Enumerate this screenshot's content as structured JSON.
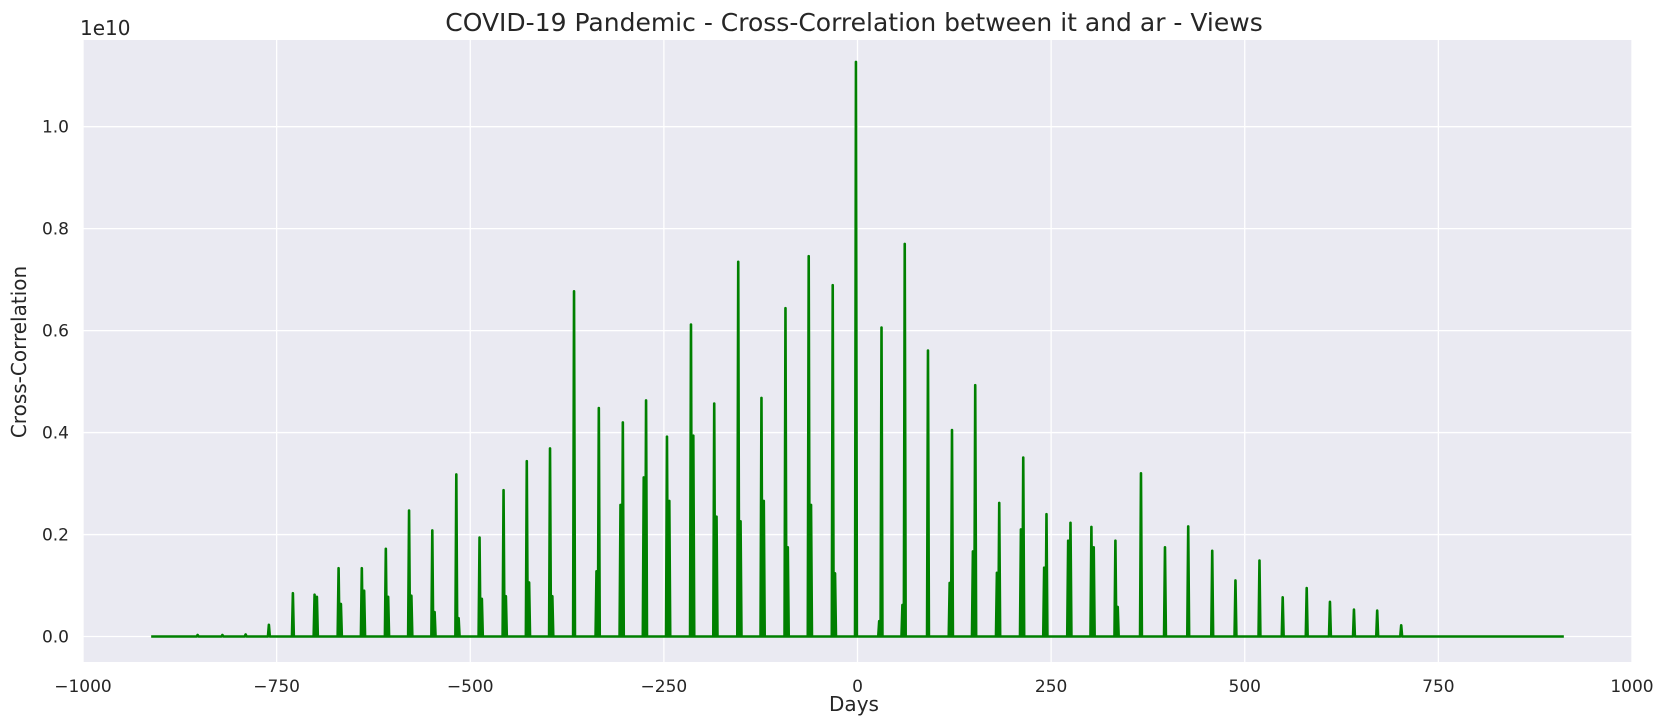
{
  "chart_data": {
    "type": "line",
    "title": "COVID-19 Pandemic - Cross-Correlation between it and ar - Views",
    "xlabel": "Days",
    "ylabel": "Cross-Correlation",
    "y_offset_label": "1e10",
    "xlim": [
      -1000,
      1000
    ],
    "ylim": [
      -0.05,
      1.17
    ],
    "x_range": [
      -912,
      912
    ],
    "x_ticks": [
      -1000,
      -750,
      -500,
      -250,
      0,
      250,
      500,
      750,
      1000
    ],
    "x_tick_labels": [
      "−1000",
      "−750",
      "−500",
      "−250",
      "0",
      "250",
      "500",
      "750",
      "1000"
    ],
    "y_ticks": [
      0.0,
      0.2,
      0.4,
      0.6,
      0.8,
      1.0
    ],
    "y_tick_labels": [
      "0.0",
      "0.2",
      "0.4",
      "0.6",
      "0.8",
      "1.0"
    ],
    "grid": true,
    "line_color": "#008000",
    "background_color": "#eaeaf2",
    "series": [
      {
        "peaks": [
          {
            "x": -852,
            "y": 0.003
          },
          {
            "x": -820,
            "y": 0.003
          },
          {
            "x": -790,
            "y": 0.004
          },
          {
            "x": -760,
            "y": 0.023
          },
          {
            "x": -729,
            "y": 0.085
          },
          {
            "x": -701,
            "y": 0.082
          },
          {
            "x": -698,
            "y": 0.078
          },
          {
            "x": -670,
            "y": 0.134
          },
          {
            "x": -667,
            "y": 0.064
          },
          {
            "x": -640,
            "y": 0.134
          },
          {
            "x": -637,
            "y": 0.09
          },
          {
            "x": -609,
            "y": 0.172
          },
          {
            "x": -606,
            "y": 0.078
          },
          {
            "x": -579,
            "y": 0.247
          },
          {
            "x": -576,
            "y": 0.08
          },
          {
            "x": -549,
            "y": 0.208
          },
          {
            "x": -546,
            "y": 0.048
          },
          {
            "x": -518,
            "y": 0.318
          },
          {
            "x": -515,
            "y": 0.036
          },
          {
            "x": -488,
            "y": 0.194
          },
          {
            "x": -485,
            "y": 0.074
          },
          {
            "x": -457,
            "y": 0.287
          },
          {
            "x": -454,
            "y": 0.079
          },
          {
            "x": -427,
            "y": 0.344
          },
          {
            "x": -424,
            "y": 0.106
          },
          {
            "x": -397,
            "y": 0.369
          },
          {
            "x": -394,
            "y": 0.079
          },
          {
            "x": -366,
            "y": 0.677
          },
          {
            "x": -337,
            "y": 0.128
          },
          {
            "x": -334,
            "y": 0.448
          },
          {
            "x": -306,
            "y": 0.258
          },
          {
            "x": -303,
            "y": 0.42
          },
          {
            "x": -276,
            "y": 0.312
          },
          {
            "x": -273,
            "y": 0.463
          },
          {
            "x": -246,
            "y": 0.392
          },
          {
            "x": -243,
            "y": 0.266
          },
          {
            "x": -215,
            "y": 0.612
          },
          {
            "x": -212,
            "y": 0.394
          },
          {
            "x": -185,
            "y": 0.457
          },
          {
            "x": -182,
            "y": 0.235
          },
          {
            "x": -154,
            "y": 0.735
          },
          {
            "x": -151,
            "y": 0.226
          },
          {
            "x": -124,
            "y": 0.468
          },
          {
            "x": -121,
            "y": 0.266
          },
          {
            "x": -93,
            "y": 0.644
          },
          {
            "x": -90,
            "y": 0.175
          },
          {
            "x": -63,
            "y": 0.746
          },
          {
            "x": -60,
            "y": 0.258
          },
          {
            "x": -32,
            "y": 0.689
          },
          {
            "x": -29,
            "y": 0.124
          },
          {
            "x": -2,
            "y": 1.127
          },
          {
            "x": 28,
            "y": 0.03
          },
          {
            "x": 31,
            "y": 0.606
          },
          {
            "x": 58,
            "y": 0.062
          },
          {
            "x": 61,
            "y": 0.77
          },
          {
            "x": 91,
            "y": 0.561
          },
          {
            "x": 119,
            "y": 0.105
          },
          {
            "x": 122,
            "y": 0.405
          },
          {
            "x": 149,
            "y": 0.167
          },
          {
            "x": 152,
            "y": 0.493
          },
          {
            "x": 180,
            "y": 0.125
          },
          {
            "x": 183,
            "y": 0.262
          },
          {
            "x": 211,
            "y": 0.21
          },
          {
            "x": 214,
            "y": 0.351
          },
          {
            "x": 241,
            "y": 0.135
          },
          {
            "x": 244,
            "y": 0.24
          },
          {
            "x": 272,
            "y": 0.188
          },
          {
            "x": 275,
            "y": 0.223
          },
          {
            "x": 302,
            "y": 0.215
          },
          {
            "x": 305,
            "y": 0.175
          },
          {
            "x": 333,
            "y": 0.188
          },
          {
            "x": 336,
            "y": 0.058
          },
          {
            "x": 366,
            "y": 0.32
          },
          {
            "x": 397,
            "y": 0.175
          },
          {
            "x": 427,
            "y": 0.216
          },
          {
            "x": 458,
            "y": 0.168
          },
          {
            "x": 488,
            "y": 0.11
          },
          {
            "x": 519,
            "y": 0.149
          },
          {
            "x": 549,
            "y": 0.077
          },
          {
            "x": 580,
            "y": 0.095
          },
          {
            "x": 610,
            "y": 0.068
          },
          {
            "x": 641,
            "y": 0.053
          },
          {
            "x": 671,
            "y": 0.051
          },
          {
            "x": 702,
            "y": 0.022
          }
        ]
      }
    ]
  }
}
